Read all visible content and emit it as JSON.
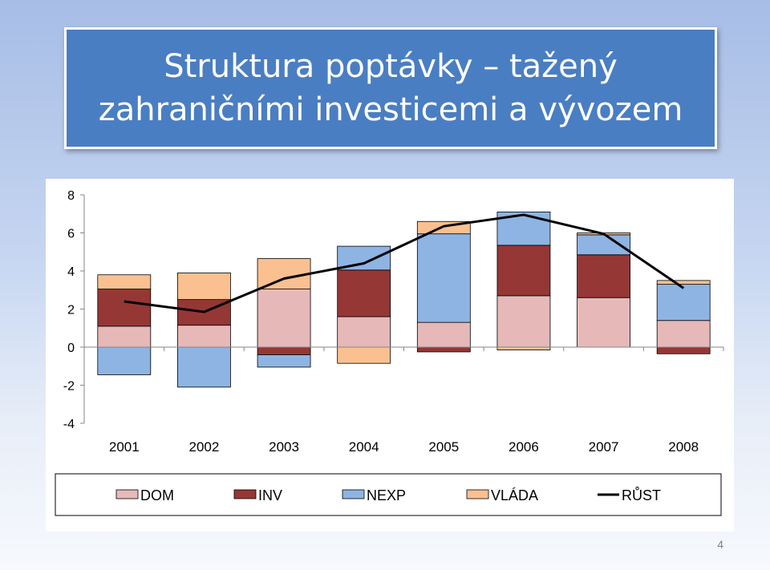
{
  "slide": {
    "title_line1": "Struktura poptávky – tažený",
    "title_line2": "zahraničními investicemi a vývozem",
    "page_number": "4"
  },
  "chart_data": {
    "type": "bar",
    "stacked": true,
    "categories": [
      "2001",
      "2002",
      "2003",
      "2004",
      "2005",
      "2006",
      "2007",
      "2008"
    ],
    "ylim": [
      -4,
      8
    ],
    "yticks": [
      "-4",
      "-2",
      "0",
      "2",
      "4",
      "6",
      "8"
    ],
    "grid": false,
    "legend_position": "bottom",
    "series": [
      {
        "name": "DOM",
        "kind": "bar",
        "color": "#e6b9b8",
        "values": [
          1.1,
          1.15,
          3.05,
          1.6,
          1.3,
          2.7,
          2.6,
          1.4
        ]
      },
      {
        "name": "INV",
        "kind": "bar",
        "color": "#953735",
        "values": [
          1.95,
          1.35,
          -0.4,
          2.45,
          -0.25,
          2.65,
          2.25,
          -0.35
        ]
      },
      {
        "name": "NEXP",
        "kind": "bar",
        "color": "#8eb4e3",
        "values": [
          -1.45,
          -2.1,
          -0.65,
          1.25,
          4.65,
          1.75,
          1.05,
          1.9
        ]
      },
      {
        "name": "VLÁDA",
        "kind": "bar",
        "color": "#fac090",
        "values": [
          0.75,
          1.4,
          1.6,
          -0.85,
          0.65,
          -0.15,
          0.1,
          0.2
        ]
      },
      {
        "name": "RŮST",
        "kind": "line",
        "color": "#000000",
        "values": [
          2.4,
          1.85,
          3.6,
          4.4,
          6.35,
          6.95,
          5.95,
          3.1
        ]
      }
    ]
  }
}
